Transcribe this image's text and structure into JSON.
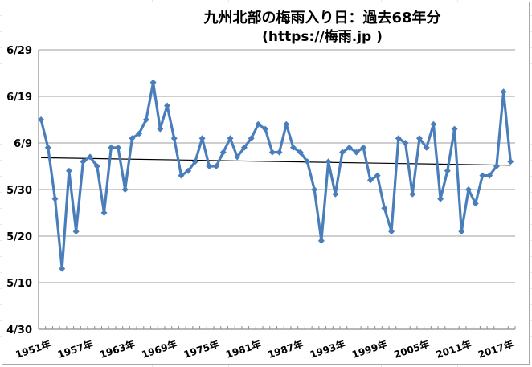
{
  "title": {
    "line1": "九州北部の梅雨入り日：過去68年分",
    "line2": "(https://梅雨.jp )"
  },
  "colors": {
    "series": "#4a7ebb",
    "trend": "#000000",
    "grid": "#b0b0b0",
    "axis": "#8c8c8c"
  },
  "chart_data": {
    "type": "line",
    "title": "九州北部の梅雨入り日：過去68年分 (https://梅雨.jp )",
    "xlabel": "",
    "ylabel": "",
    "y_ticks": [
      "4/30",
      "5/10",
      "5/20",
      "5/30",
      "6/9",
      "6/19",
      "6/29"
    ],
    "y_tick_values": [
      0,
      10,
      20,
      30,
      40,
      50,
      60
    ],
    "ylim": [
      "4/30",
      "6/29"
    ],
    "x_tick_labels": [
      "1951年",
      "1957年",
      "1963年",
      "1969年",
      "1975年",
      "1981年",
      "1987年",
      "1993年",
      "1999年",
      "2005年",
      "2011年",
      "2017年"
    ],
    "grid": true,
    "legend": "none",
    "trendline": {
      "type": "linear",
      "start": "6/6",
      "end": "6/4"
    },
    "series": [
      {
        "name": "梅雨入り日",
        "x": [
          1951,
          1952,
          1953,
          1954,
          1955,
          1956,
          1957,
          1958,
          1959,
          1960,
          1961,
          1962,
          1963,
          1964,
          1965,
          1966,
          1967,
          1968,
          1969,
          1970,
          1971,
          1972,
          1973,
          1974,
          1975,
          1976,
          1977,
          1978,
          1979,
          1980,
          1981,
          1982,
          1983,
          1984,
          1985,
          1986,
          1987,
          1988,
          1989,
          1990,
          1991,
          1992,
          1993,
          1994,
          1995,
          1996,
          1997,
          1998,
          1999,
          2000,
          2001,
          2002,
          2003,
          2004,
          2005,
          2006,
          2007,
          2008,
          2009,
          2010,
          2011,
          2012,
          2013,
          2014,
          2015,
          2016,
          2017,
          2018
        ],
        "dates": [
          "6/14",
          "6/8",
          "5/28",
          "5/13",
          "6/3",
          "5/21",
          "6/5",
          "6/6",
          "6/4",
          "5/25",
          "6/8",
          "6/8",
          "5/30",
          "6/10",
          "6/11",
          "6/14",
          "6/22",
          "6/12",
          "6/17",
          "6/10",
          "6/2",
          "6/3",
          "6/5",
          "6/10",
          "6/4",
          "6/4",
          "6/7",
          "6/10",
          "6/6",
          "6/8",
          "6/10",
          "6/13",
          "6/12",
          "6/7",
          "6/7",
          "6/13",
          "6/8",
          "6/7",
          "6/5",
          "5/30",
          "5/19",
          "6/5",
          "5/29",
          "6/7",
          "6/8",
          "6/7",
          "6/8",
          "6/1",
          "6/2",
          "5/26",
          "5/21",
          "6/10",
          "6/9",
          "5/29",
          "6/10",
          "6/8",
          "6/13",
          "5/28",
          "6/3",
          "6/12",
          "5/21",
          "5/30",
          "5/27",
          "6/2",
          "6/2",
          "6/4",
          "6/20",
          "6/5"
        ],
        "values": [
          45,
          39,
          28,
          13,
          34,
          21,
          36,
          37,
          35,
          25,
          39,
          39,
          30,
          41,
          42,
          45,
          53,
          43,
          48,
          41,
          33,
          34,
          36,
          41,
          35,
          35,
          38,
          41,
          37,
          39,
          41,
          44,
          43,
          38,
          38,
          44,
          39,
          38,
          36,
          30,
          19,
          36,
          29,
          38,
          39,
          38,
          39,
          32,
          33,
          26,
          21,
          41,
          40,
          29,
          41,
          39,
          44,
          28,
          34,
          43,
          21,
          30,
          27,
          33,
          33,
          35,
          51,
          36
        ]
      }
    ]
  }
}
